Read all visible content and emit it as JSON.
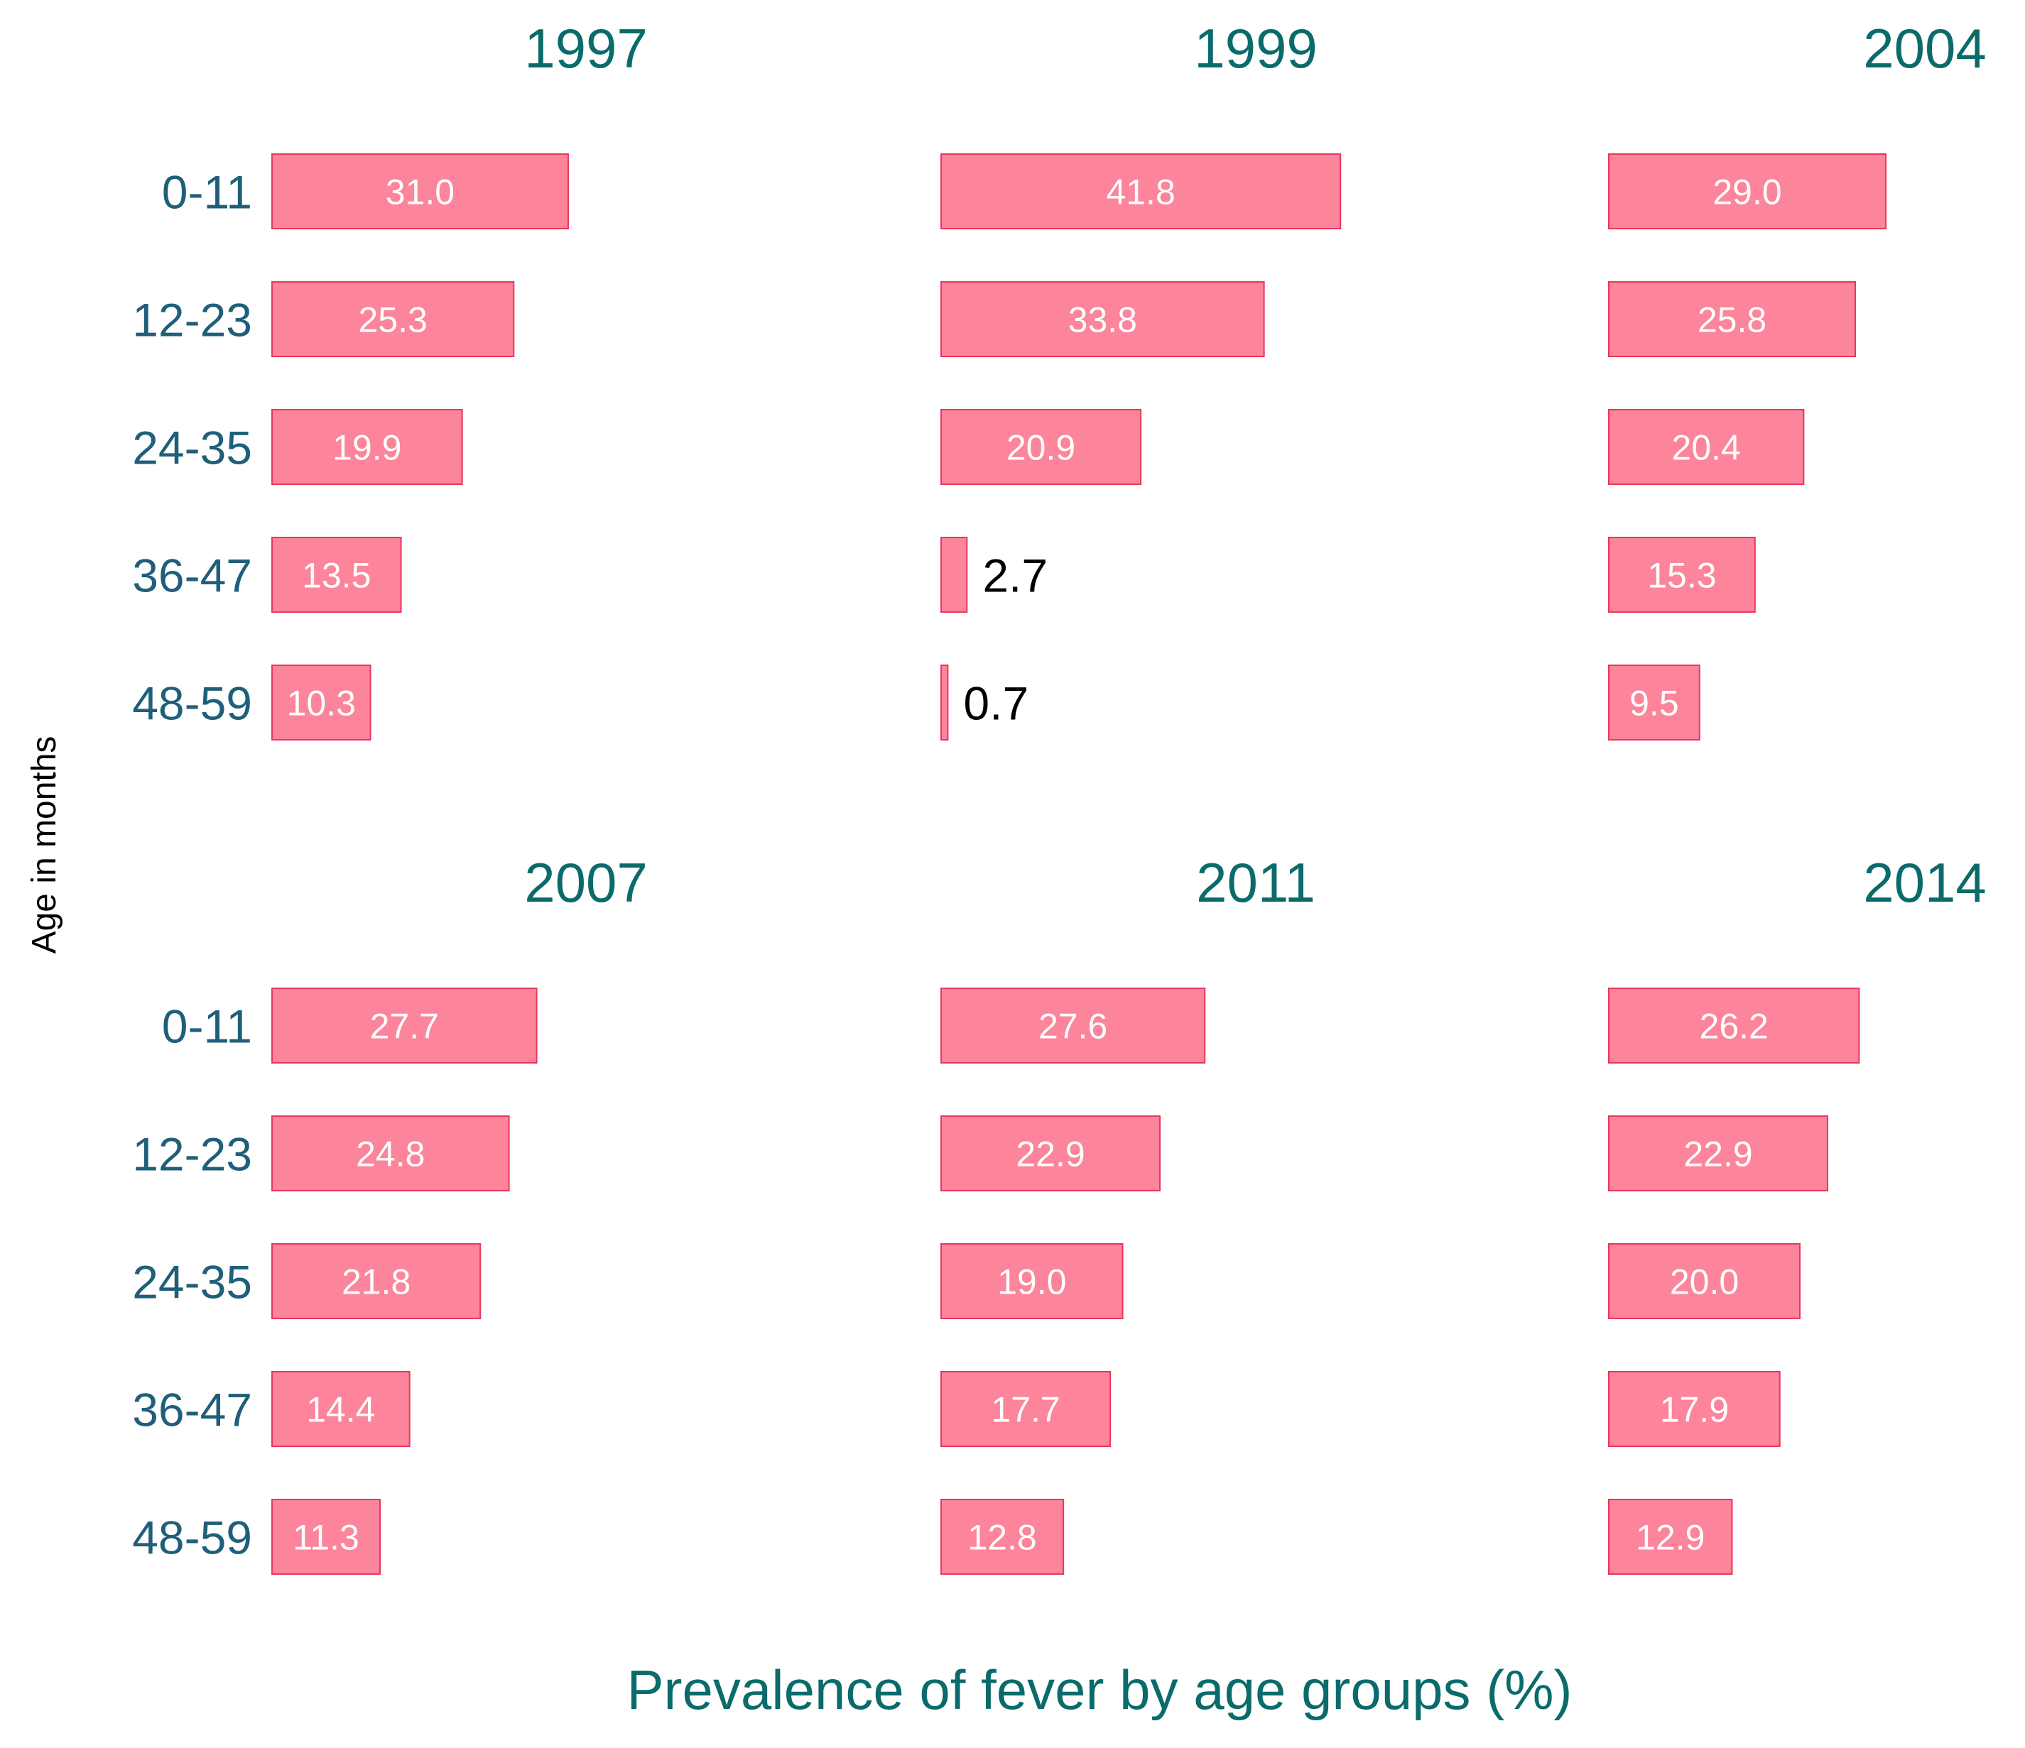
{
  "chart_data": {
    "type": "bar",
    "orientation": "horizontal",
    "xlabel": "Prevalence of fever by age groups (%)",
    "ylabel": "Age in months",
    "categories": [
      "0-11",
      "12-23",
      "24-35",
      "36-47",
      "48-59"
    ],
    "xlim": [
      0,
      42
    ],
    "colors": {
      "bar_fill": "#fc849b",
      "bar_stroke": "#e8365e",
      "title": "#0b6b6b",
      "tick_label": "#1f5f7a"
    },
    "panels": [
      {
        "title": "1997",
        "values": [
          31.0,
          25.3,
          19.9,
          13.5,
          10.3
        ],
        "labels": [
          "31.0",
          "25.3",
          "19.9",
          "13.5",
          "10.3"
        ]
      },
      {
        "title": "1999",
        "values": [
          41.8,
          33.8,
          20.9,
          2.7,
          0.7
        ],
        "labels": [
          "41.8",
          "33.8",
          "20.9",
          "2.7",
          "0.7"
        ]
      },
      {
        "title": "2004",
        "values": [
          29.0,
          25.8,
          20.4,
          15.3,
          9.5
        ],
        "labels": [
          "29.0",
          "25.8",
          "20.4",
          "15.3",
          "9.5"
        ]
      },
      {
        "title": "2007",
        "values": [
          27.7,
          24.8,
          21.8,
          14.4,
          11.3
        ],
        "labels": [
          "27.7",
          "24.8",
          "21.8",
          "14.4",
          "11.3"
        ]
      },
      {
        "title": "2011",
        "values": [
          27.6,
          22.9,
          19.0,
          17.7,
          12.8
        ],
        "labels": [
          "27.6",
          "22.9",
          "19.0",
          "17.7",
          "12.8"
        ]
      },
      {
        "title": "2014",
        "values": [
          26.2,
          22.9,
          20.0,
          17.9,
          12.9
        ],
        "labels": [
          "26.2",
          "22.9",
          "20.0",
          "17.9",
          "12.9"
        ]
      }
    ]
  }
}
